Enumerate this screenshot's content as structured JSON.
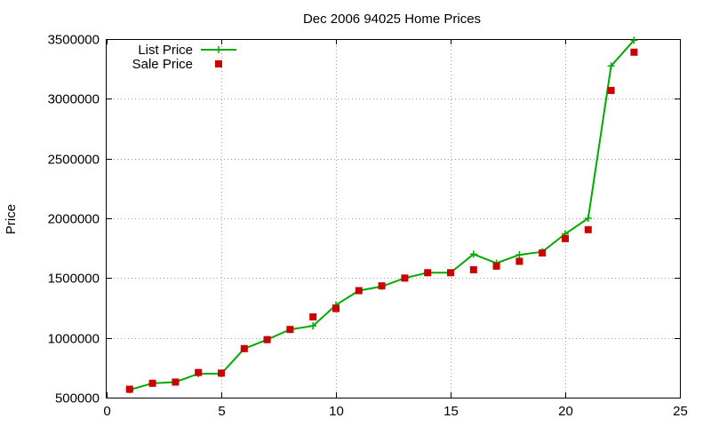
{
  "chart_data": {
    "type": "line",
    "title": "Dec 2006 94025 Home Prices",
    "xlabel": "",
    "ylabel": "Price",
    "xlim": [
      0,
      25
    ],
    "ylim": [
      500000,
      3500000
    ],
    "x_ticks": [
      0,
      5,
      10,
      15,
      20,
      25
    ],
    "y_ticks": [
      500000,
      1000000,
      1500000,
      2000000,
      2500000,
      3000000,
      3500000
    ],
    "x_tick_labels": [
      "0",
      "5",
      "10",
      "15",
      "20",
      "25"
    ],
    "y_tick_labels": [
      "500000",
      "1000000",
      "1500000",
      "2000000",
      "2500000",
      "3000000",
      "3500000"
    ],
    "grid": true,
    "legend_position": "top-left",
    "series": [
      {
        "name": "List Price",
        "style": "line-plus",
        "color": "#00aa00",
        "x": [
          1,
          2,
          3,
          4,
          5,
          6,
          7,
          8,
          9,
          10,
          11,
          12,
          13,
          14,
          15,
          16,
          17,
          18,
          19,
          20,
          21,
          22,
          23
        ],
        "values": [
          565000,
          620000,
          630000,
          700000,
          700000,
          910000,
          985000,
          1070000,
          1100000,
          1275000,
          1395000,
          1430000,
          1500000,
          1545000,
          1545000,
          1700000,
          1625000,
          1695000,
          1720000,
          1870000,
          2000000,
          3275000,
          3490000
        ]
      },
      {
        "name": "Sale Price",
        "style": "square-marker",
        "color": "#cc0000",
        "x": [
          1,
          2,
          3,
          4,
          5,
          6,
          7,
          8,
          9,
          10,
          11,
          12,
          13,
          14,
          15,
          16,
          17,
          18,
          19,
          20,
          21,
          22,
          23
        ],
        "values": [
          570000,
          620000,
          630000,
          710000,
          705000,
          910000,
          985000,
          1070000,
          1175000,
          1245000,
          1395000,
          1435000,
          1500000,
          1545000,
          1545000,
          1570000,
          1600000,
          1640000,
          1710000,
          1830000,
          1905000,
          3070000,
          3390000
        ]
      }
    ]
  }
}
